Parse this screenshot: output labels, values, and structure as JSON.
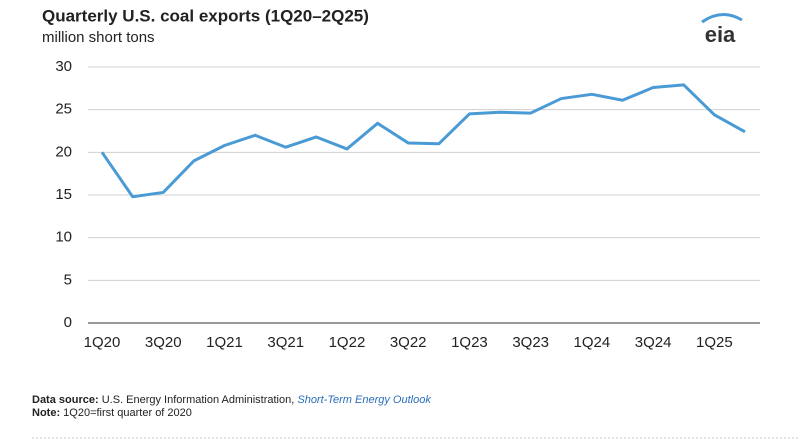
{
  "chart_data": {
    "type": "line",
    "title": "Quarterly U.S. coal exports (1Q20–2Q25)",
    "subtitle": "million short tons",
    "categories": [
      "1Q20",
      null,
      "3Q20",
      null,
      "1Q21",
      null,
      "3Q21",
      null,
      "1Q22",
      null,
      "3Q22",
      null,
      "1Q23",
      null,
      "3Q23",
      null,
      "1Q24",
      null,
      "3Q24",
      null,
      "1Q25",
      null
    ],
    "values": [
      20.0,
      14.8,
      15.3,
      19.0,
      20.8,
      22.0,
      20.6,
      21.8,
      20.4,
      23.4,
      21.1,
      21.0,
      24.5,
      24.7,
      24.6,
      26.3,
      26.8,
      26.1,
      27.6,
      27.9,
      24.4,
      22.4
    ],
    "color": "#4a9bd5",
    "ylim": [
      0,
      30
    ],
    "yticks": [
      0,
      5,
      10,
      15,
      20,
      25,
      30
    ],
    "grid": true
  },
  "logo": "eia",
  "footer": {
    "source_label": "Data source:",
    "source_text": "U.S. Energy Information Administration,",
    "source_link": "Short-Term Energy Outlook",
    "note_label": "Note:",
    "note_text": "1Q20=first quarter of 2020"
  }
}
